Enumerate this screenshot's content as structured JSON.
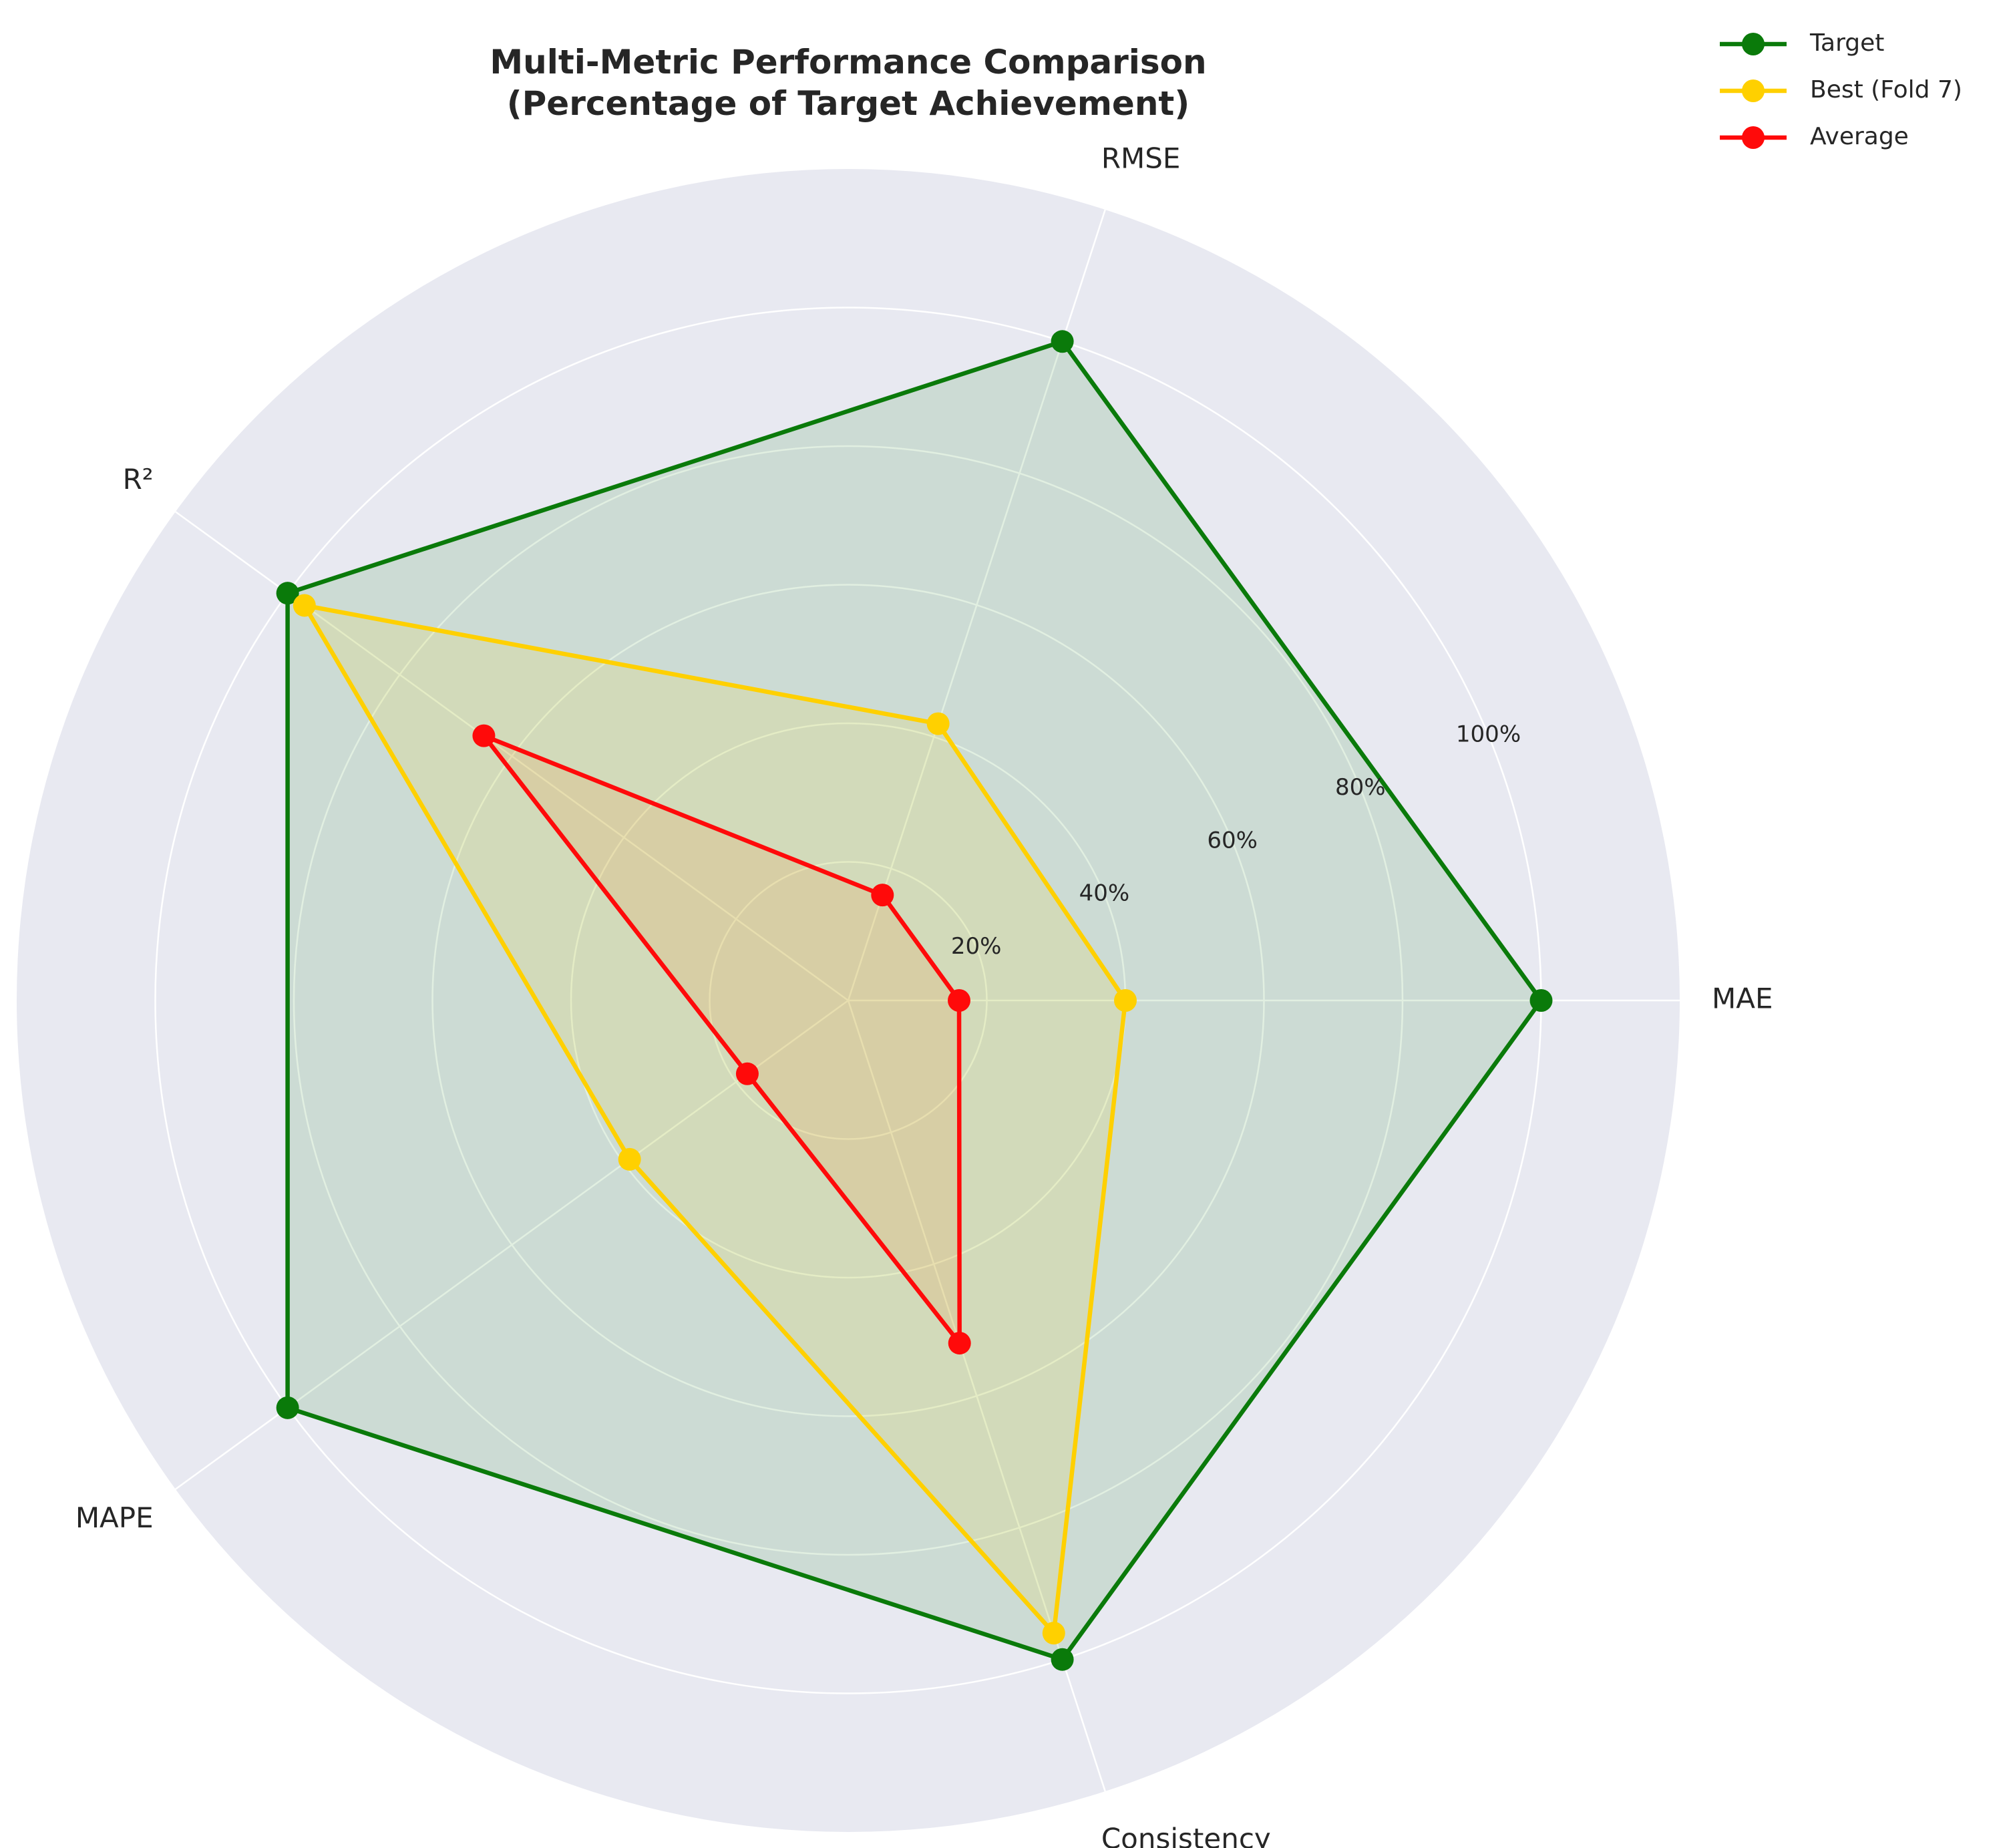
{
  "chart_data": {
    "type": "radar",
    "title": "Multi-Metric Performance Comparison",
    "subtitle": "(Percentage of Target Achievement)",
    "categories": [
      "MAE",
      "RMSE",
      "R²",
      "MAPE",
      "Consistency"
    ],
    "rlim": [
      0,
      120
    ],
    "rticks": [
      20,
      40,
      60,
      80,
      100
    ],
    "rtick_labels": [
      "20%",
      "40%",
      "60%",
      "80%",
      "100%"
    ],
    "grid": true,
    "legend_position": "top-right",
    "background_color": "#e8e9f1",
    "series": [
      {
        "name": "Target",
        "values": [
          100,
          100,
          100,
          100,
          100
        ],
        "color": "#0a7a0a",
        "fill": "#0a7a0a"
      },
      {
        "name": "Best (Fold 7)",
        "values": [
          40,
          42,
          97,
          39,
          96
        ],
        "color": "#ffd000",
        "fill": "#ffd700"
      },
      {
        "name": "Average",
        "values": [
          16,
          16,
          65,
          18,
          52
        ],
        "color": "#ff0a0a",
        "fill": "#ff7f0e"
      }
    ]
  }
}
